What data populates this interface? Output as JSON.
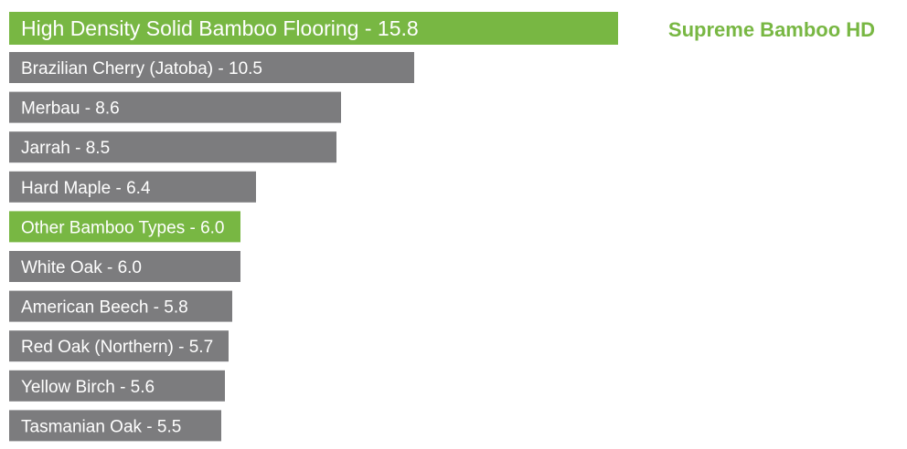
{
  "chart_data": {
    "type": "bar",
    "orientation": "horizontal",
    "categories": [
      "High Density Solid Bamboo Flooring",
      "Brazilian Cherry (Jatoba)",
      "Merbau",
      "Jarrah",
      "Hard Maple",
      "Other Bamboo Types",
      "White Oak",
      "American Beech",
      "Red Oak (Northern)",
      "Yellow Birch",
      "Tasmanian Oak"
    ],
    "values": [
      15.8,
      10.5,
      8.6,
      8.5,
      6.4,
      6.0,
      6.0,
      5.8,
      5.7,
      5.6,
      5.5
    ],
    "labels": [
      "High Density Solid Bamboo Flooring - 15.8",
      "Brazilian Cherry (Jatoba) - 10.5",
      "Merbau - 8.6",
      "Jarrah - 8.5",
      "Hard Maple - 6.4",
      "Other Bamboo Types - 6.0",
      "White Oak - 6.0",
      "American Beech - 5.8",
      "Red Oak (Northern) - 5.7",
      "Yellow Birch - 5.6",
      "Tasmanian Oak - 5.5"
    ],
    "highlighted": [
      0,
      5
    ],
    "annotation": "Supreme Bamboo HD",
    "xlim": [
      0,
      15.8
    ],
    "grid": false,
    "colors": {
      "highlight": "#78b743",
      "default": "#7c7c7e",
      "annotation": "#78b743",
      "label": "#ffffff"
    }
  }
}
